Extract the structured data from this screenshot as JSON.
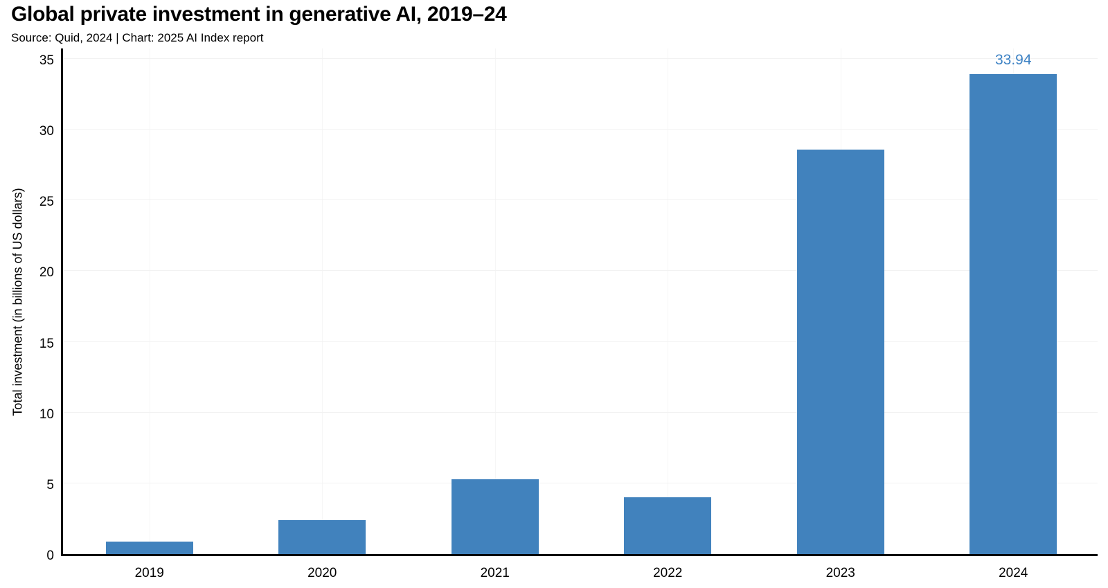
{
  "chart_data": {
    "type": "bar",
    "title": "Global private investment in generative AI, 2019–24",
    "source_line": "Source: Quid, 2024 | Chart: 2025 AI Index report",
    "categories": [
      "2019",
      "2020",
      "2021",
      "2022",
      "2023",
      "2024"
    ],
    "values": [
      0.9,
      2.4,
      5.3,
      4.0,
      28.6,
      33.94
    ],
    "bar_labels": [
      "",
      "",
      "",
      "",
      "",
      "33.94"
    ],
    "xlabel": "",
    "ylabel": "Total investment (in billions of US dollars)",
    "ylim": [
      0,
      35
    ],
    "yticks": [
      0,
      5,
      10,
      15,
      20,
      25,
      30,
      35
    ],
    "legend": "none",
    "grid": {
      "horizontal": true,
      "vertical": true
    },
    "colors": {
      "bar": "#4182BD",
      "bar_label": "#3D82C4",
      "axis": "#000000",
      "gridline_h": "#F2F2F2",
      "gridline_v": "#F6F6F6",
      "background": "#FFFFFF",
      "text": "#000000"
    }
  }
}
